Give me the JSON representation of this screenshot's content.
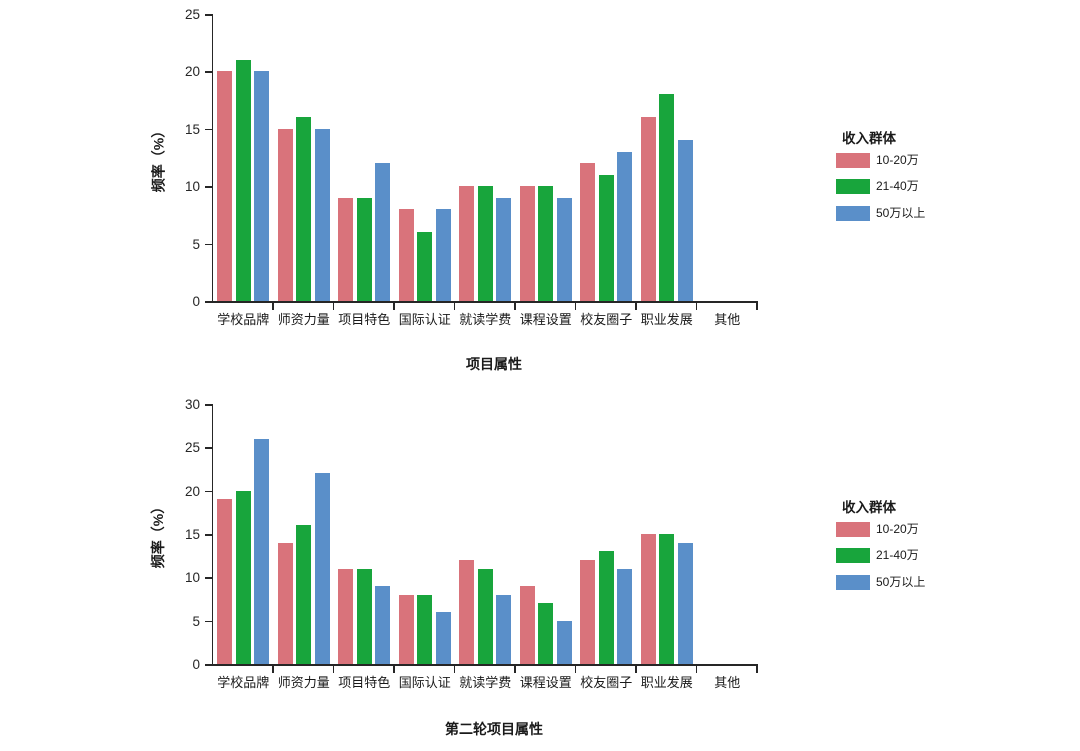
{
  "page": {
    "background": "#ffffff"
  },
  "colors": {
    "axis": "#262626",
    "text": "#1a1a1a"
  },
  "chart_data": [
    {
      "type": "bar",
      "title": "项目属性",
      "xlabel": "项目属性",
      "ylabel": "频率（%）",
      "ylim": [
        0,
        25
      ],
      "yticks": [
        0,
        5,
        10,
        15,
        20,
        25
      ],
      "grid": false,
      "legend_position": "right",
      "legend_title": "收入群体",
      "categories": [
        "学校品牌",
        "师资力量",
        "项目特色",
        "国际认证",
        "就读学费",
        "课程设置",
        "校友圈子",
        "职业发展",
        "其他"
      ],
      "series": [
        {
          "name": "10-20万",
          "color": "#D9737B",
          "values": [
            20,
            15,
            9,
            8,
            10,
            10,
            12,
            16,
            0
          ]
        },
        {
          "name": "21-40万",
          "color": "#18A53C",
          "values": [
            21,
            16,
            9,
            6,
            10,
            10,
            11,
            18,
            0
          ]
        },
        {
          "name": "50万以上",
          "color": "#5A8FC9",
          "values": [
            20,
            15,
            12,
            8,
            9,
            9,
            13,
            14,
            0
          ]
        }
      ]
    },
    {
      "type": "bar",
      "title": "第二轮项目属性",
      "xlabel": "第二轮项目属性",
      "ylabel": "频率（%）",
      "ylim": [
        0,
        30
      ],
      "yticks": [
        0,
        5,
        10,
        15,
        20,
        25,
        30
      ],
      "grid": false,
      "legend_position": "right",
      "legend_title": "收入群体",
      "categories": [
        "学校品牌",
        "师资力量",
        "项目特色",
        "国际认证",
        "就读学费",
        "课程设置",
        "校友圈子",
        "职业发展",
        "其他"
      ],
      "series": [
        {
          "name": "10-20万",
          "color": "#D9737B",
          "values": [
            19,
            14,
            11,
            8,
            12,
            9,
            12,
            15,
            0
          ]
        },
        {
          "name": "21-40万",
          "color": "#18A53C",
          "values": [
            20,
            16,
            11,
            8,
            11,
            7,
            13,
            15,
            0
          ]
        },
        {
          "name": "50万以上",
          "color": "#5A8FC9",
          "values": [
            26,
            22,
            9,
            6,
            8,
            5,
            11,
            14,
            0
          ]
        }
      ]
    }
  ]
}
